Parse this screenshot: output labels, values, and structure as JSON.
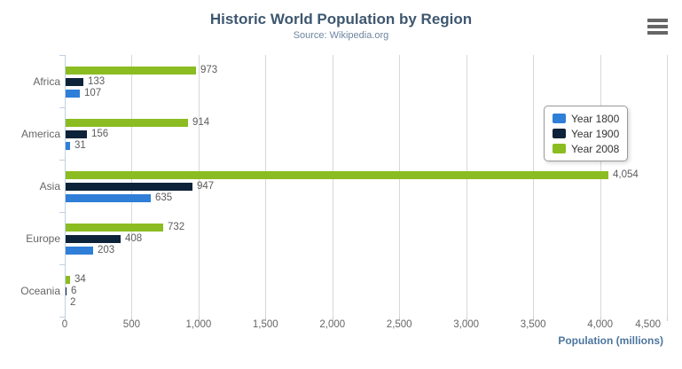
{
  "header": {
    "title": "Historic World Population by Region",
    "subtitle": "Source: Wikipedia.org"
  },
  "icons": {
    "context_menu": "hamburger-icon"
  },
  "legend": {
    "items": [
      {
        "label": "Year 1800",
        "color": "#2f7ed8"
      },
      {
        "label": "Year 1900",
        "color": "#0d233a"
      },
      {
        "label": "Year 2008",
        "color": "#8bbc21"
      }
    ]
  },
  "chart_data": {
    "type": "bar",
    "orientation": "horizontal",
    "title": "Historic World Population by Region",
    "subtitle": "Source: Wikipedia.org",
    "xlabel": "Population (millions)",
    "ylabel": "",
    "categories": [
      "Africa",
      "America",
      "Asia",
      "Europe",
      "Oceania"
    ],
    "series": [
      {
        "name": "Year 1800",
        "color": "#2f7ed8",
        "values": [
          107,
          31,
          635,
          203,
          2
        ]
      },
      {
        "name": "Year 1900",
        "color": "#0d233a",
        "values": [
          133,
          156,
          947,
          408,
          6
        ]
      },
      {
        "name": "Year 2008",
        "color": "#8bbc21",
        "values": [
          973,
          914,
          4054,
          732,
          34
        ]
      }
    ],
    "series_display_order_top_to_bottom": [
      "Year 2008",
      "Year 1900",
      "Year 1800"
    ],
    "xlim": [
      0,
      4500
    ],
    "x_tick_interval": 500,
    "x_tick_labels": [
      "0",
      "500",
      "1,000",
      "1,500",
      "2,000",
      "2,500",
      "3,000",
      "3,500",
      "4,000",
      "4,500"
    ],
    "grid": true,
    "data_labels": true,
    "legend_position": "floating-right"
  }
}
